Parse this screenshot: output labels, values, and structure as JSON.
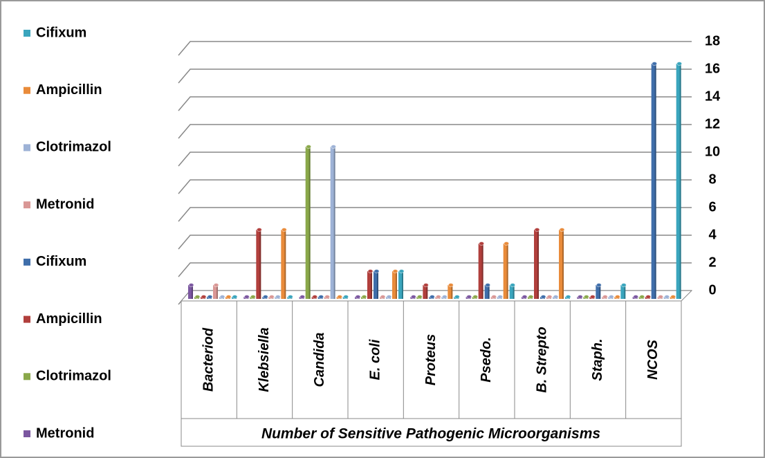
{
  "chart_data": {
    "type": "bar3d",
    "x_label": "Number of Sensitive Pathogenic  Microorganisms",
    "categories": [
      "Bacteriod",
      "Klebsiella",
      "Candida",
      "E. coli",
      "Proteus",
      "Psedo.",
      "B. Strepto",
      "Staph.",
      "NCOS"
    ],
    "series": [
      {
        "name": "Metronid",
        "color": "#7b57a0",
        "values": [
          1,
          0,
          0,
          0,
          0,
          0,
          0,
          0,
          0
        ]
      },
      {
        "name": "Clotrimazol",
        "color": "#8aa84a",
        "values": [
          0,
          0,
          11,
          0,
          0,
          0,
          0,
          0,
          0
        ]
      },
      {
        "name": "Ampicillin",
        "color": "#b13f3c",
        "values": [
          0,
          5,
          0,
          2,
          1,
          4,
          5,
          0,
          0
        ]
      },
      {
        "name": "Cifixum",
        "color": "#3f6eaa",
        "values": [
          0,
          0,
          0,
          2,
          0,
          1,
          0,
          1,
          17
        ]
      },
      {
        "name": "Metronid",
        "color": "#d99795",
        "values": [
          1,
          0,
          0,
          0,
          0,
          0,
          0,
          0,
          0
        ]
      },
      {
        "name": "Clotrimazol",
        "color": "#9db2d6",
        "values": [
          0,
          0,
          11,
          0,
          0,
          0,
          0,
          0,
          0
        ]
      },
      {
        "name": "Ampicillin",
        "color": "#e98b3a",
        "values": [
          0,
          5,
          0,
          2,
          1,
          4,
          5,
          0,
          0
        ]
      },
      {
        "name": "Cifixum",
        "color": "#3aa5bd",
        "values": [
          0,
          0,
          0,
          2,
          0,
          1,
          0,
          1,
          17
        ]
      }
    ],
    "ylim": [
      0,
      18
    ],
    "yticks": [
      0,
      2,
      4,
      6,
      8,
      10,
      12,
      14,
      16,
      18
    ],
    "grid": true
  }
}
